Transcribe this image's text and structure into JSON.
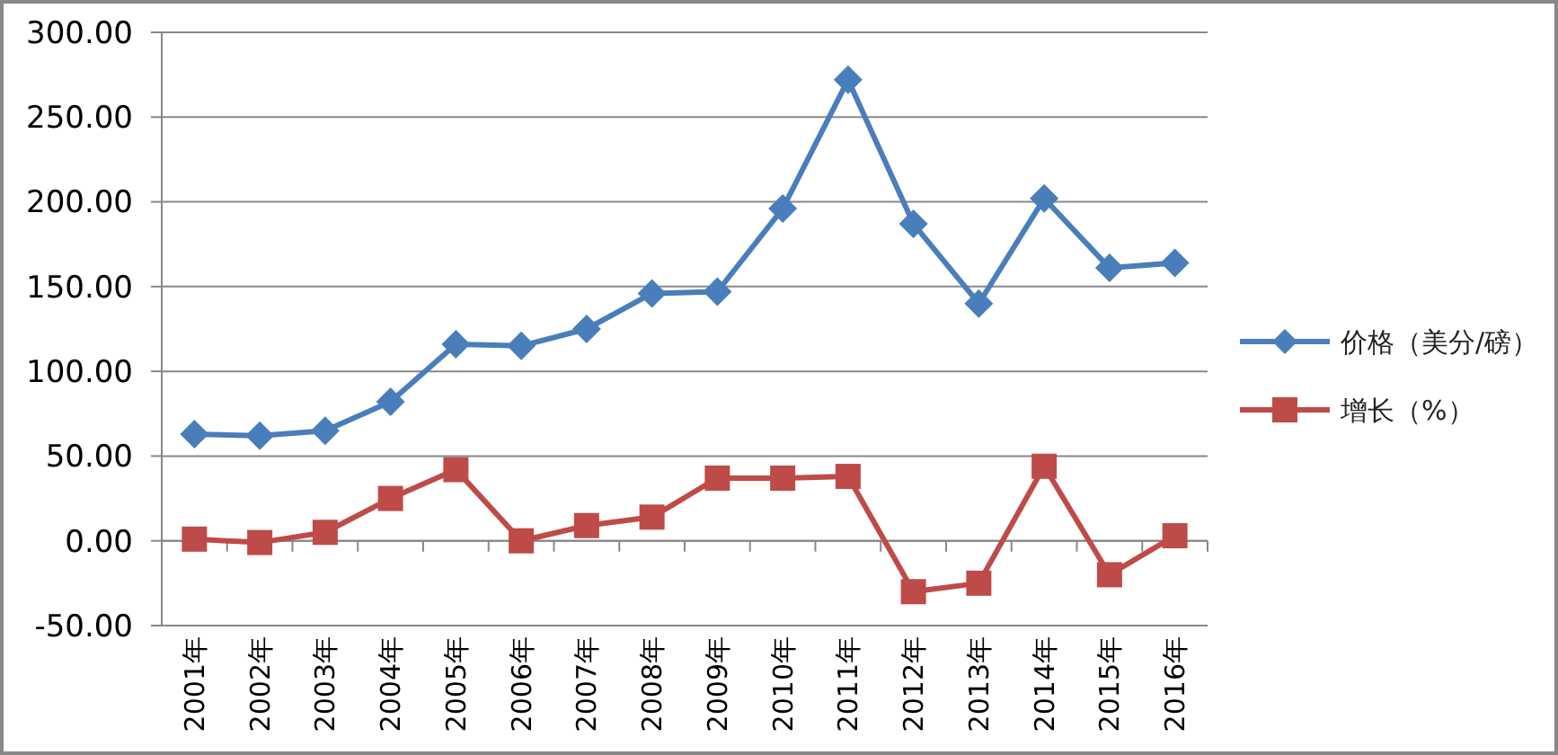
{
  "chart_data": {
    "type": "line",
    "categories": [
      "2001年",
      "2002年",
      "2003年",
      "2004年",
      "2005年",
      "2006年",
      "2007年",
      "2008年",
      "2009年",
      "2010年",
      "2011年",
      "2012年",
      "2013年",
      "2014年",
      "2015年",
      "2016年"
    ],
    "series": [
      {
        "name": "价格（美分/磅）",
        "color": "#4a7ebb",
        "marker": "diamond",
        "values": [
          63,
          62,
          65,
          82,
          116,
          115,
          125,
          146,
          147,
          196,
          272,
          187,
          140,
          202,
          161,
          164
        ]
      },
      {
        "name": "增长（%）",
        "color": "#be4b48",
        "marker": "square",
        "values": [
          1,
          -1,
          5,
          25,
          42,
          0,
          9,
          14,
          37,
          37,
          38,
          -30,
          -25,
          44,
          -20,
          3
        ]
      }
    ],
    "ylim": [
      -50,
      300
    ],
    "yticks": [
      {
        "value": -50,
        "label": "-50.00"
      },
      {
        "value": 0,
        "label": "0.00"
      },
      {
        "value": 50,
        "label": "50.00"
      },
      {
        "value": 100,
        "label": "100.00"
      },
      {
        "value": 150,
        "label": "150.00"
      },
      {
        "value": 200,
        "label": "200.00"
      },
      {
        "value": 250,
        "label": "250.00"
      },
      {
        "value": 300,
        "label": "300.00"
      }
    ],
    "grid": "y",
    "legend": "right",
    "line_style": "solid"
  }
}
